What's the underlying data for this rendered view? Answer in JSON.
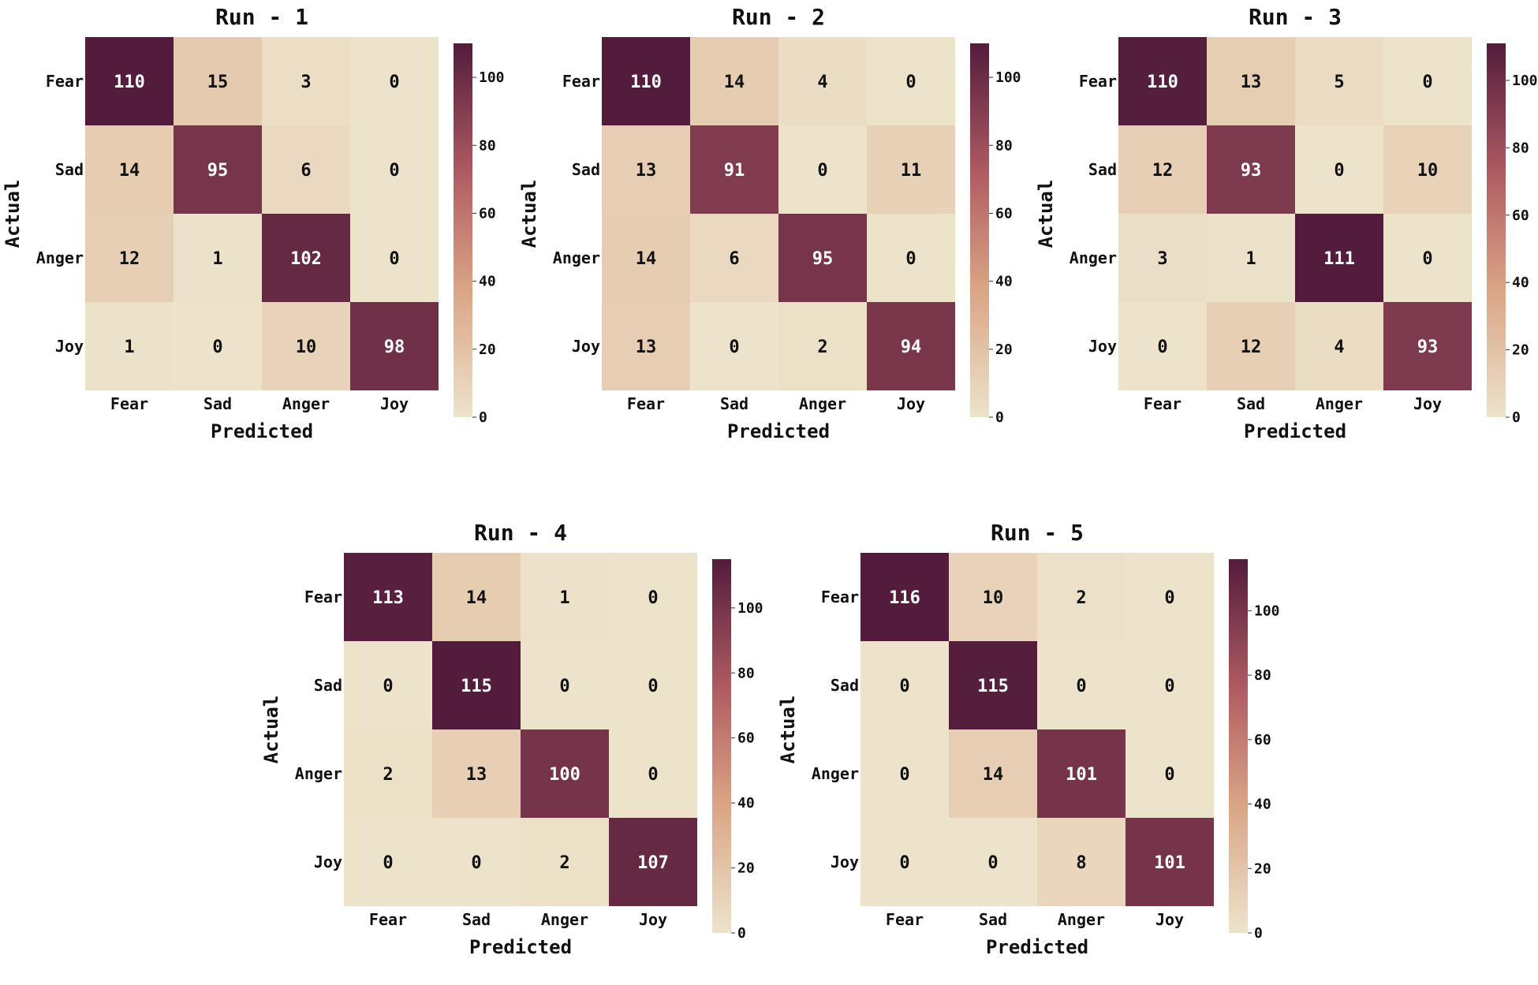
{
  "chart_data": [
    {
      "type": "heatmap",
      "title": "Run - 1",
      "xlabel": "Predicted",
      "ylabel": "Actual",
      "x_categories": [
        "Fear",
        "Sad",
        "Anger",
        "Joy"
      ],
      "y_categories": [
        "Fear",
        "Sad",
        "Anger",
        "Joy"
      ],
      "values": [
        [
          110,
          15,
          3,
          0
        ],
        [
          14,
          95,
          6,
          0
        ],
        [
          12,
          1,
          102,
          0
        ],
        [
          1,
          0,
          10,
          98
        ]
      ],
      "colorbar": {
        "min": 0,
        "max": 110,
        "ticks": [
          0,
          20,
          40,
          60,
          80,
          100
        ]
      }
    },
    {
      "type": "heatmap",
      "title": "Run - 2",
      "xlabel": "Predicted",
      "ylabel": "Actual",
      "x_categories": [
        "Fear",
        "Sad",
        "Anger",
        "Joy"
      ],
      "y_categories": [
        "Fear",
        "Sad",
        "Anger",
        "Joy"
      ],
      "values": [
        [
          110,
          14,
          4,
          0
        ],
        [
          13,
          91,
          0,
          11
        ],
        [
          14,
          6,
          95,
          0
        ],
        [
          13,
          0,
          2,
          94
        ]
      ],
      "colorbar": {
        "min": 0,
        "max": 110,
        "ticks": [
          0,
          20,
          40,
          60,
          80,
          100
        ]
      }
    },
    {
      "type": "heatmap",
      "title": "Run - 3",
      "xlabel": "Predicted",
      "ylabel": "Actual",
      "x_categories": [
        "Fear",
        "Sad",
        "Anger",
        "Joy"
      ],
      "y_categories": [
        "Fear",
        "Sad",
        "Anger",
        "Joy"
      ],
      "values": [
        [
          110,
          13,
          5,
          0
        ],
        [
          12,
          93,
          0,
          10
        ],
        [
          3,
          1,
          111,
          0
        ],
        [
          0,
          12,
          4,
          93
        ]
      ],
      "colorbar": {
        "min": 0,
        "max": 111,
        "ticks": [
          0,
          20,
          40,
          60,
          80,
          100
        ]
      }
    },
    {
      "type": "heatmap",
      "title": "Run - 4",
      "xlabel": "Predicted",
      "ylabel": "Actual",
      "x_categories": [
        "Fear",
        "Sad",
        "Anger",
        "Joy"
      ],
      "y_categories": [
        "Fear",
        "Sad",
        "Anger",
        "Joy"
      ],
      "values": [
        [
          113,
          14,
          1,
          0
        ],
        [
          0,
          115,
          0,
          0
        ],
        [
          2,
          13,
          100,
          0
        ],
        [
          0,
          0,
          2,
          107
        ]
      ],
      "colorbar": {
        "min": 0,
        "max": 115,
        "ticks": [
          0,
          20,
          40,
          60,
          80,
          100
        ]
      }
    },
    {
      "type": "heatmap",
      "title": "Run - 5",
      "xlabel": "Predicted",
      "ylabel": "Actual",
      "x_categories": [
        "Fear",
        "Sad",
        "Anger",
        "Joy"
      ],
      "y_categories": [
        "Fear",
        "Sad",
        "Anger",
        "Joy"
      ],
      "values": [
        [
          116,
          10,
          2,
          0
        ],
        [
          0,
          115,
          0,
          0
        ],
        [
          0,
          14,
          101,
          0
        ],
        [
          0,
          0,
          8,
          101
        ]
      ],
      "colorbar": {
        "min": 0,
        "max": 116,
        "ticks": [
          0,
          20,
          40,
          60,
          80,
          100
        ]
      }
    }
  ],
  "colormap": {
    "low": "#ede3cb",
    "mid": "#d9a384",
    "high": "#531c3c",
    "text_light": "#ffffff",
    "text_dark": "#111111"
  }
}
